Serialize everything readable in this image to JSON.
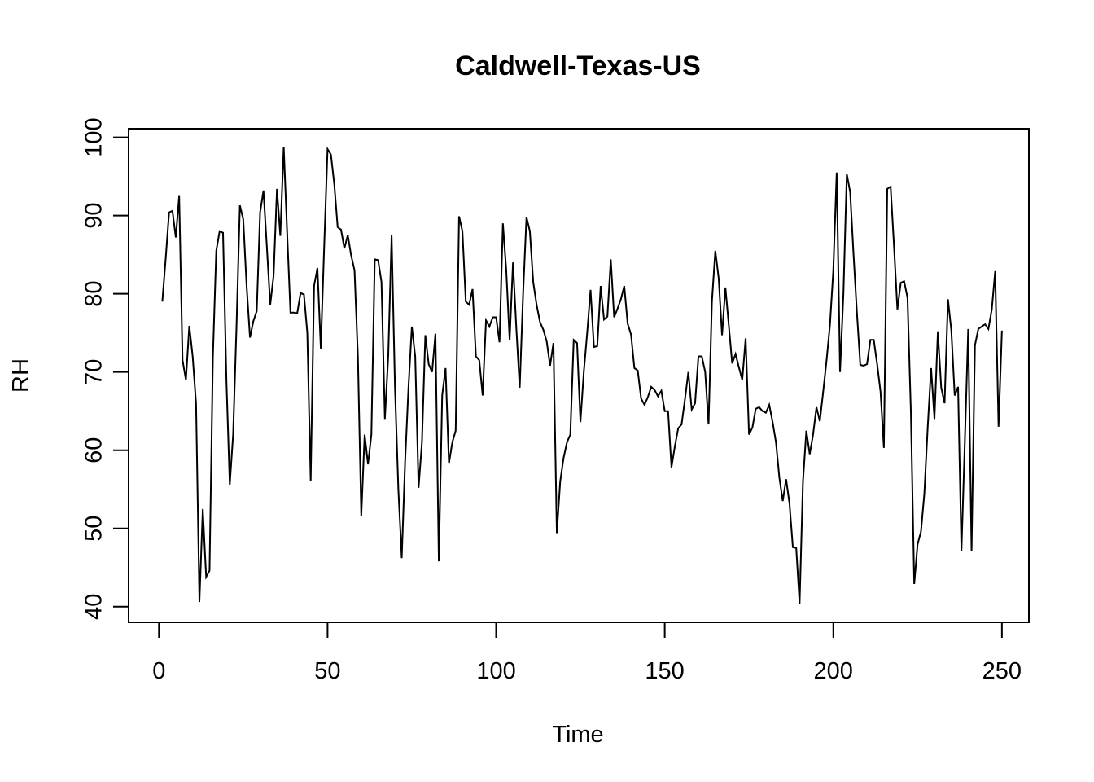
{
  "chart_data": {
    "type": "line",
    "title": "Caldwell-Texas-US",
    "xlabel": "Time",
    "ylabel": "RH",
    "xlim": [
      -9,
      258
    ],
    "ylim": [
      38,
      101.1
    ],
    "x_ticks": [
      0,
      50,
      100,
      150,
      200,
      250
    ],
    "y_ticks": [
      40,
      50,
      60,
      70,
      80,
      90,
      100
    ],
    "x_tick_labels": [
      "0",
      "50",
      "100",
      "150",
      "200",
      "250"
    ],
    "y_tick_labels": [
      "40",
      "50",
      "60",
      "70",
      "80",
      "90",
      "100"
    ],
    "grid": false,
    "legend": "none",
    "line_color": "#000000",
    "series": [
      {
        "x_start": 1,
        "x_step": 1,
        "values": [
          79.0,
          84.5,
          90.4,
          90.6,
          87.2,
          92.5,
          71.5,
          69.0,
          75.9,
          72.0,
          66.0,
          40.6,
          52.5,
          43.8,
          44.6,
          72.0,
          85.5,
          88.0,
          87.8,
          69.0,
          55.6,
          62.0,
          75.8,
          91.3,
          89.5,
          81.0,
          74.4,
          76.5,
          77.8,
          90.4,
          93.2,
          86.0,
          78.6,
          82.3,
          93.4,
          87.4,
          98.8,
          88.0,
          77.6,
          77.6,
          77.5,
          80.1,
          79.9,
          75.0,
          56.1,
          81.0,
          83.3,
          73.0,
          86.0,
          98.5,
          97.8,
          94.0,
          88.5,
          88.2,
          85.8,
          87.5,
          84.9,
          83.0,
          72.0,
          51.6,
          62.0,
          58.2,
          62.0,
          84.4,
          84.3,
          81.5,
          64.0,
          72.0,
          87.5,
          68.0,
          55.0,
          46.2,
          58.5,
          68.0,
          75.8,
          72.0,
          55.2,
          61.0,
          74.7,
          71.0,
          70.0,
          74.9,
          45.8,
          67.0,
          70.5,
          58.3,
          61.0,
          62.5,
          89.9,
          88.0,
          79.0,
          78.6,
          80.6,
          72.0,
          71.5,
          67.0,
          76.6,
          75.8,
          77.0,
          77.0,
          73.8,
          89.0,
          83.0,
          74.1,
          84.0,
          75.5,
          68.0,
          80.0,
          89.8,
          88.0,
          81.5,
          78.6,
          76.4,
          75.4,
          73.9,
          70.8,
          73.7,
          49.4,
          56.0,
          59.0,
          61.0,
          62.0,
          74.1,
          73.7,
          63.6,
          70.0,
          75.0,
          80.5,
          73.2,
          73.3,
          81.0,
          76.7,
          77.1,
          84.4,
          77.0,
          78.1,
          79.3,
          81.0,
          76.2,
          74.8,
          70.5,
          70.2,
          66.6,
          65.8,
          66.8,
          68.1,
          67.7,
          66.9,
          67.6,
          65.0,
          65.0,
          57.8,
          60.5,
          62.8,
          63.3,
          66.5,
          70.0,
          65.2,
          66.0,
          72.0,
          72.0,
          70.0,
          63.3,
          79.0,
          85.5,
          82.0,
          74.7,
          80.8,
          76.0,
          71.1,
          72.3,
          70.6,
          69.0,
          74.3,
          62.0,
          62.9,
          65.3,
          65.5,
          65.0,
          64.8,
          65.8,
          63.6,
          61.0,
          56.5,
          53.5,
          56.3,
          53.2,
          47.6,
          47.5,
          40.4,
          56.0,
          62.5,
          59.5,
          62.0,
          65.5,
          63.7,
          67.5,
          71.5,
          76.0,
          83.0,
          95.5,
          70.0,
          80.0,
          95.3,
          93.0,
          85.0,
          77.6,
          70.9,
          70.8,
          71.0,
          74.1,
          74.1,
          71.0,
          67.5,
          60.3,
          93.4,
          93.7,
          86.1,
          78.0,
          81.4,
          81.6,
          79.5,
          65.0,
          42.9,
          48.0,
          49.6,
          54.5,
          63.0,
          70.5,
          64.0,
          75.2,
          68.0,
          66.0,
          79.3,
          75.3,
          67.0,
          68.1,
          47.1,
          61.0,
          75.5,
          47.1,
          73.4,
          75.5,
          75.8,
          76.1,
          75.5,
          78.0,
          82.9,
          63.0,
          75.3
        ]
      }
    ]
  }
}
